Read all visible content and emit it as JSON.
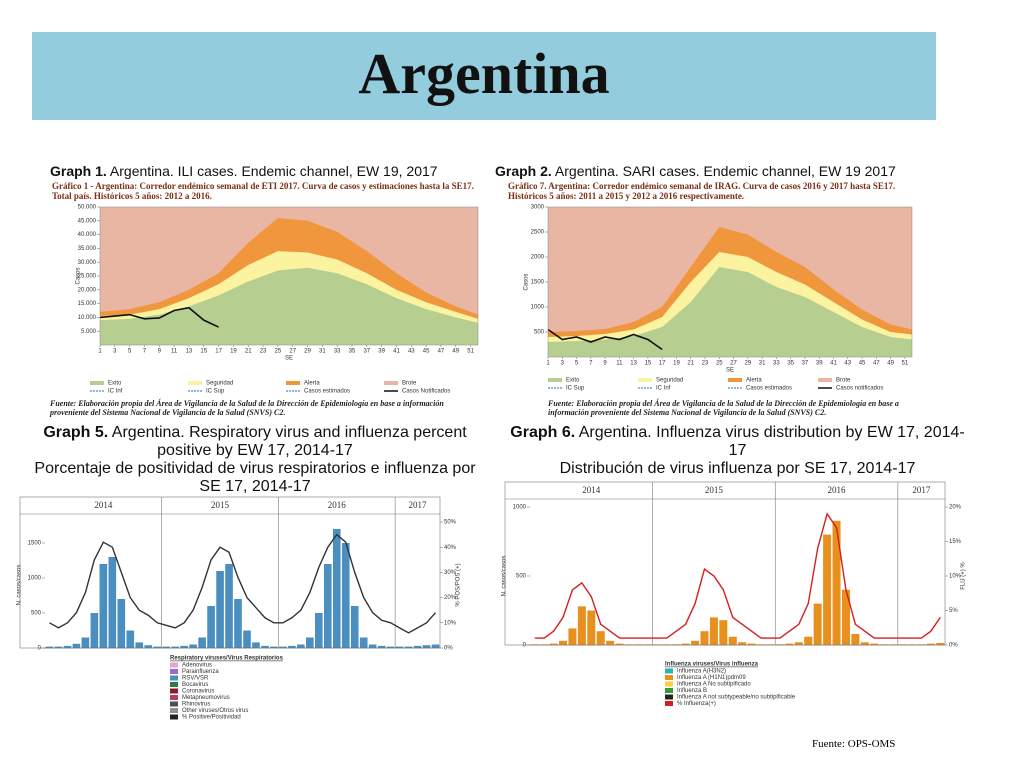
{
  "title": "Argentina",
  "source": "Fuente: OPS-OMS",
  "chart_data": [
    {
      "type": "area",
      "caption_label": "Graph 1.",
      "caption": "Argentina. ILI cases. Endemic channel, EW 19, 2017",
      "subtitle": "Gráfico 1 - Argentina: Corredor endémico semanal de ETI 2017. Curva de casos y estimaciones hasta la SE17. Total país. Históricos 5 años: 2012 a 2016.",
      "note": "Fuente: Elaboración propia del Área de Vigilancia de la Salud de la Dirección de Epidemiología en base a información proveniente del Sistema Nacional de Vigilancia de la Salud (SNVS) C2.",
      "xlabel": "SE",
      "ylabel": "Casos",
      "x": [
        1,
        5,
        9,
        13,
        17,
        21,
        25,
        29,
        33,
        37,
        41,
        45,
        49,
        52
      ],
      "xlim": [
        1,
        52
      ],
      "xticks": [
        1,
        3,
        5,
        7,
        9,
        11,
        13,
        15,
        17,
        19,
        21,
        23,
        25,
        27,
        29,
        31,
        33,
        35,
        37,
        39,
        41,
        43,
        45,
        47,
        49,
        51
      ],
      "ylim": [
        0,
        50000
      ],
      "yticks": [
        {
          "value": 5000,
          "label": "5.000"
        },
        {
          "value": 10000,
          "label": "10.000"
        },
        {
          "value": 15000,
          "label": "15.000"
        },
        {
          "value": 20000,
          "label": "20.000"
        },
        {
          "value": 25000,
          "label": "25.000"
        },
        {
          "value": 30000,
          "label": "30.000"
        },
        {
          "value": 35000,
          "label": "35.000"
        },
        {
          "value": 40000,
          "label": "40.000"
        },
        {
          "value": 45000,
          "label": "45.000"
        },
        {
          "value": 50000,
          "label": "50.000"
        }
      ],
      "series": [
        {
          "name": "Alerta",
          "color": "#f0963c",
          "values": [
            12000,
            13000,
            15500,
            20000,
            26000,
            37000,
            46000,
            45000,
            41000,
            34000,
            26000,
            19000,
            14000,
            11000
          ]
        },
        {
          "name": "Seguridad",
          "color": "#fbf3a0",
          "values": [
            10500,
            11000,
            13000,
            17000,
            22000,
            29000,
            34000,
            33500,
            31000,
            26000,
            20000,
            15500,
            12000,
            9500
          ]
        },
        {
          "name": "Exito",
          "color": "#b6cf90",
          "values": [
            9000,
            9500,
            11000,
            14000,
            18000,
            23000,
            27000,
            28000,
            26000,
            22000,
            17000,
            13000,
            10000,
            8000
          ]
        },
        {
          "name": "Casos Notificados",
          "color": "#111111",
          "x": [
            1,
            3,
            5,
            7,
            9,
            11,
            13,
            15,
            17
          ],
          "values": [
            10000,
            10500,
            11000,
            9500,
            9800,
            12500,
            13500,
            9000,
            6500
          ]
        }
      ],
      "legend": [
        {
          "name": "Brote",
          "color": "#e9b6a3"
        },
        {
          "name": "IC Sup",
          "color": "#6a9fd4"
        },
        {
          "name": "IC Inf",
          "color": "#6a9fd4"
        },
        {
          "name": "Casos estimados",
          "color": "#6a9fd4"
        }
      ]
    },
    {
      "type": "area",
      "caption_label": "Graph 2.",
      "caption": "Argentina. SARI cases. Endemic channel, EW 19  2017",
      "subtitle": "Gráfico 7. Argentina: Corredor endémico semanal de IRAG. Curva de casos 2016 y 2017 hasta SE17. Históricos 5 años: 2011 a 2015 y 2012 a 2016 respectivamente.",
      "note": "Fuente: Elaboración propia del Área de Vigilancia de la Salud de la Dirección de Epidemiología en base a información proveniente del Sistema Nacional de Vigilancia de la Salud (SNVS) C2.",
      "xlabel": "SE",
      "ylabel": "Casos",
      "x": [
        1,
        5,
        9,
        13,
        17,
        21,
        25,
        29,
        33,
        37,
        41,
        45,
        49,
        52
      ],
      "xlim": [
        1,
        52
      ],
      "xticks": [
        1,
        3,
        5,
        7,
        9,
        11,
        13,
        15,
        17,
        19,
        21,
        23,
        25,
        27,
        29,
        31,
        33,
        35,
        37,
        39,
        41,
        43,
        45,
        47,
        49,
        51
      ],
      "ylim": [
        0,
        3000
      ],
      "yticks": [
        500,
        1000,
        1500,
        2000,
        2500,
        3000
      ],
      "series": [
        {
          "name": "Alerta",
          "color": "#f0963c",
          "values": [
            500,
            520,
            560,
            700,
            1000,
            1800,
            2600,
            2450,
            2100,
            1800,
            1350,
            950,
            650,
            550
          ]
        },
        {
          "name": "Seguridad",
          "color": "#fbf3a0",
          "values": [
            400,
            420,
            460,
            550,
            800,
            1500,
            2100,
            2000,
            1700,
            1450,
            1100,
            750,
            500,
            450
          ]
        },
        {
          "name": "Exito",
          "color": "#b6cf90",
          "values": [
            300,
            320,
            350,
            420,
            600,
            1100,
            1800,
            1700,
            1400,
            1200,
            900,
            600,
            400,
            350
          ]
        },
        {
          "name": "Casos notificados",
          "color": "#111111",
          "x": [
            1,
            3,
            5,
            7,
            9,
            11,
            13,
            15,
            17
          ],
          "values": [
            550,
            350,
            400,
            300,
            400,
            350,
            450,
            350,
            150
          ]
        }
      ],
      "legend": [
        {
          "name": "Brote",
          "color": "#e9b6a3"
        },
        {
          "name": "IC Inf",
          "color": "#6a9fd4"
        },
        {
          "name": "IC Sup",
          "color": "#6a9fd4"
        },
        {
          "name": "Casos estimados",
          "color": "#6a9fd4"
        }
      ]
    },
    {
      "type": "bar",
      "caption_label": "Graph 5.",
      "caption": "Argentina. Respiratory virus and influenza percent positive by EW 17, 2014-17",
      "subtitle": "Porcentaje de positividad de virus respiratorios e influenza por SE 17, 2014-17",
      "ylabel": "N. casos/casos",
      "y2label": "% POS/POS (+)",
      "years": [
        "2014",
        "2015",
        "2016",
        "2017"
      ],
      "year_breaks": [
        52,
        104,
        156
      ],
      "x": [
        2,
        6,
        10,
        14,
        18,
        22,
        26,
        30,
        34,
        38,
        42,
        46,
        50,
        54,
        58,
        62,
        66,
        70,
        74,
        78,
        82,
        86,
        90,
        94,
        98,
        102,
        106,
        110,
        114,
        118,
        122,
        126,
        130,
        134,
        138,
        142,
        146,
        150,
        154,
        158,
        162,
        166,
        170,
        174
      ],
      "xlim": [
        0,
        176
      ],
      "ylim": [
        0,
        1800
      ],
      "yticks": [
        0,
        500,
        1000,
        1500
      ],
      "y2lim": [
        0,
        50
      ],
      "y2ticks": [
        {
          "value": 0,
          "label": "0%"
        },
        {
          "value": 10,
          "label": "10%"
        },
        {
          "value": 20,
          "label": "20%"
        },
        {
          "value": 30,
          "label": "30%"
        },
        {
          "value": 40,
          "label": "40%"
        },
        {
          "value": 50,
          "label": "50%"
        }
      ],
      "series": [
        {
          "name": "RSV/VSR",
          "color": "#4a8fc0",
          "values": [
            20,
            20,
            30,
            60,
            150,
            500,
            1200,
            1300,
            700,
            250,
            80,
            40,
            20,
            20,
            20,
            30,
            50,
            150,
            600,
            1100,
            1200,
            700,
            250,
            80,
            30,
            20,
            20,
            30,
            50,
            150,
            500,
            1200,
            1700,
            1500,
            600,
            150,
            50,
            30,
            20,
            20,
            20,
            30,
            40,
            50
          ]
        },
        {
          "name": "% Positive/Positividad",
          "color": "#333333",
          "axis": "y2",
          "values": [
            10,
            8,
            10,
            14,
            22,
            35,
            42,
            40,
            30,
            20,
            15,
            13,
            10,
            9,
            8,
            10,
            15,
            24,
            35,
            40,
            38,
            28,
            20,
            16,
            12,
            10,
            10,
            12,
            15,
            22,
            32,
            40,
            45,
            42,
            30,
            20,
            14,
            11,
            10,
            8,
            6,
            8,
            10,
            14
          ]
        }
      ],
      "legend_title": "Respiratory viruses/Virus Respiratorios",
      "legend": [
        {
          "name": "Adenovirus",
          "color": "#e8a0d8"
        },
        {
          "name": "Parainfluenza",
          "color": "#9a6ad0"
        },
        {
          "name": "RSV/VSR",
          "color": "#4a8fc0"
        },
        {
          "name": "Bocavirus",
          "color": "#2e7a4a"
        },
        {
          "name": "Coronavirus",
          "color": "#8a1a2a"
        },
        {
          "name": "Metapneumovirus",
          "color": "#b0406a"
        },
        {
          "name": "Rhinovirus",
          "color": "#505050"
        },
        {
          "name": "Other viruses/Otros virus",
          "color": "#909090"
        },
        {
          "name": "% Positive/Positividad",
          "color": "#222222"
        }
      ]
    },
    {
      "type": "bar",
      "caption_label": "Graph 6.",
      "caption": "Argentina. Influenza virus distribution by EW 17, 2014-17",
      "subtitle": "Distribución de virus influenza por SE 17, 2014-17",
      "ylabel": "N. casos/casos",
      "y2label": "FLU (+) %",
      "years": [
        "2014",
        "2015",
        "2016",
        "2017"
      ],
      "year_breaks": [
        52,
        104,
        156
      ],
      "x": [
        2,
        6,
        10,
        14,
        18,
        22,
        26,
        30,
        34,
        38,
        42,
        46,
        50,
        54,
        58,
        62,
        66,
        70,
        74,
        78,
        82,
        86,
        90,
        94,
        98,
        102,
        106,
        110,
        114,
        118,
        122,
        126,
        130,
        134,
        138,
        142,
        146,
        150,
        154,
        158,
        162,
        166,
        170,
        174
      ],
      "xlim": [
        0,
        176
      ],
      "ylim": [
        0,
        1000
      ],
      "yticks": [
        0,
        500,
        1000
      ],
      "y2lim": [
        0,
        20
      ],
      "y2ticks": [
        {
          "value": 0,
          "label": "0%"
        },
        {
          "value": 5,
          "label": "5%"
        },
        {
          "value": 10,
          "label": "10%"
        },
        {
          "value": 15,
          "label": "15%"
        },
        {
          "value": 20,
          "label": "20%"
        }
      ],
      "series": [
        {
          "name": "Influenza A (H1N1)pdm09",
          "color": "#e8901e",
          "values": [
            5,
            5,
            10,
            30,
            120,
            280,
            250,
            100,
            30,
            10,
            5,
            5,
            5,
            5,
            5,
            5,
            10,
            30,
            100,
            200,
            180,
            60,
            20,
            10,
            5,
            5,
            5,
            10,
            20,
            60,
            300,
            800,
            900,
            400,
            80,
            20,
            10,
            5,
            5,
            5,
            5,
            5,
            10,
            15
          ]
        },
        {
          "name": "% Influenza(+)",
          "color": "#d42020",
          "axis": "y2",
          "values": [
            1,
            1,
            2,
            4,
            8,
            9,
            7,
            3,
            2,
            1,
            1,
            1,
            1,
            1,
            1,
            2,
            3,
            6,
            11,
            10,
            8,
            4,
            3,
            2,
            1,
            1,
            1,
            2,
            3,
            6,
            14,
            19,
            17,
            8,
            3,
            2,
            1,
            1,
            1,
            1,
            1,
            1,
            2,
            4
          ]
        }
      ],
      "legend_title": "Influenza viruses/Virus influenza",
      "legend": [
        {
          "name": "Influenza A(H3N2)",
          "color": "#29b5b5"
        },
        {
          "name": "Influenza A (H1N1)pdm09",
          "color": "#e8901e"
        },
        {
          "name": "Influenza A No subtipificado",
          "color": "#f5d040"
        },
        {
          "name": "Influenza B",
          "color": "#3a9a3a"
        },
        {
          "name": "Influenza A not subtypeable/no subtipificable",
          "color": "#222222"
        },
        {
          "name": "% Influenza(+)",
          "color": "#d42020"
        }
      ]
    }
  ]
}
